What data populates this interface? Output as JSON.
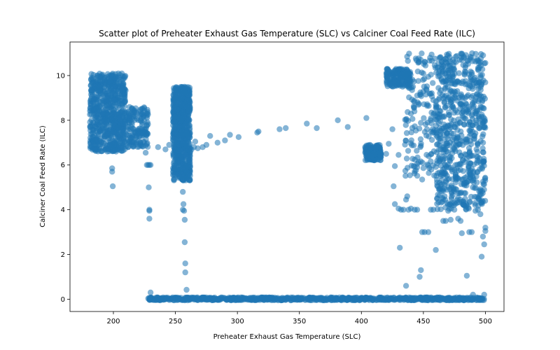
{
  "chart_data": {
    "type": "scatter",
    "title": "Scatter plot of Preheater Exhaust Gas Temperature (SLC) vs Calciner Coal Feed Rate (ILC)",
    "xlabel": "Preheater Exhaust Gas Temperature (SLC)",
    "ylabel": "Calciner Coal Feed Rate (ILC)",
    "xlim": [
      165,
      515
    ],
    "ylim": [
      -0.55,
      11.5
    ],
    "xticks": [
      200,
      250,
      300,
      350,
      400,
      450,
      500
    ],
    "yticks": [
      0,
      2,
      4,
      6,
      8,
      10
    ],
    "grid": false,
    "marker_color": "#1f77b4",
    "marker_alpha": 0.55,
    "clusters": [
      {
        "x_range": [
          181,
          210
        ],
        "y_range": [
          6.6,
          10.1
        ],
        "density": "dense"
      },
      {
        "x_range": [
          210,
          228
        ],
        "y_range": [
          6.8,
          8.6
        ],
        "density": "medium"
      },
      {
        "x_range": [
          248,
          262
        ],
        "y_range": [
          5.3,
          9.5
        ],
        "density": "dense"
      },
      {
        "x_range": [
          460,
          500
        ],
        "y_range": [
          4.0,
          11.0
        ],
        "density": "dense"
      },
      {
        "x_range": [
          435,
          460
        ],
        "y_range": [
          5.5,
          11.0
        ],
        "density": "medium"
      },
      {
        "x_range": [
          420,
          440
        ],
        "y_range": [
          9.5,
          10.3
        ],
        "density": "medium"
      },
      {
        "x_range": [
          228,
          500
        ],
        "y_range": [
          -0.05,
          0.08
        ],
        "density": "dense-line"
      },
      {
        "x_range": [
          403,
          416
        ],
        "y_range": [
          6.2,
          6.9
        ],
        "density": "medium"
      }
    ],
    "points": [
      [
        199.5,
        5.05
      ],
      [
        199,
        5.7
      ],
      [
        199,
        5.85
      ],
      [
        226,
        6.55
      ],
      [
        227,
        6.0
      ],
      [
        228,
        6.0
      ],
      [
        229,
        6.0
      ],
      [
        230,
        6.0
      ],
      [
        228.5,
        5.0
      ],
      [
        229,
        4.0
      ],
      [
        229,
        3.95
      ],
      [
        229,
        3.6
      ],
      [
        230,
        0.3
      ],
      [
        236,
        6.8
      ],
      [
        242,
        6.7
      ],
      [
        245,
        6.9
      ],
      [
        256,
        4.8
      ],
      [
        256.5,
        4.25
      ],
      [
        256,
        4.0
      ],
      [
        257,
        3.95
      ],
      [
        257.5,
        3.55
      ],
      [
        257.5,
        2.55
      ],
      [
        258,
        1.6
      ],
      [
        258,
        1.2
      ],
      [
        259,
        0.42
      ],
      [
        258,
        5.4
      ],
      [
        259,
        5.7
      ],
      [
        262,
        6.6
      ],
      [
        263,
        6.7
      ],
      [
        265,
        6.8
      ],
      [
        266,
        7.05
      ],
      [
        268,
        6.75
      ],
      [
        272,
        6.8
      ],
      [
        275,
        6.9
      ],
      [
        278,
        7.3
      ],
      [
        284,
        7.0
      ],
      [
        290,
        7.1
      ],
      [
        294,
        7.35
      ],
      [
        301,
        7.25
      ],
      [
        316,
        7.45
      ],
      [
        317,
        7.5
      ],
      [
        334,
        7.6
      ],
      [
        339,
        7.65
      ],
      [
        356,
        7.85
      ],
      [
        364,
        7.65
      ],
      [
        381,
        8.0
      ],
      [
        389,
        7.7
      ],
      [
        404,
        8.1
      ],
      [
        420,
        6.5
      ],
      [
        422,
        6.95
      ],
      [
        425,
        7.6
      ],
      [
        426,
        5.05
      ],
      [
        427,
        4.25
      ],
      [
        430,
        4.05
      ],
      [
        432,
        4.0
      ],
      [
        434,
        4.0
      ],
      [
        436,
        4.45
      ],
      [
        437,
        4.6
      ],
      [
        438,
        4.0
      ],
      [
        440,
        4.05
      ],
      [
        443,
        4.0
      ],
      [
        445,
        4.0
      ],
      [
        430,
        6.45
      ],
      [
        427,
        5.95
      ],
      [
        431,
        2.3
      ],
      [
        436,
        0.6
      ],
      [
        447,
        1.0
      ],
      [
        448,
        1.3
      ],
      [
        449,
        3.0
      ],
      [
        451,
        3.0
      ],
      [
        454,
        3.0
      ],
      [
        449,
        5.35
      ],
      [
        456,
        4.0
      ],
      [
        458,
        4.0
      ],
      [
        460,
        2.2
      ],
      [
        461,
        4.5
      ],
      [
        463,
        4.95
      ],
      [
        466,
        3.5
      ],
      [
        468,
        3.5
      ],
      [
        470,
        3.95
      ],
      [
        472,
        3.55
      ],
      [
        475,
        4.0
      ],
      [
        478,
        3.6
      ],
      [
        480,
        3.5
      ],
      [
        481,
        2.95
      ],
      [
        483,
        4.2
      ],
      [
        485,
        1.05
      ],
      [
        487,
        3.0
      ],
      [
        489,
        3.0
      ],
      [
        490,
        0.2
      ],
      [
        492,
        3.95
      ],
      [
        494,
        4.0
      ],
      [
        496,
        3.8
      ],
      [
        497,
        1.9
      ],
      [
        498,
        2.8
      ],
      [
        499,
        2.45
      ],
      [
        500,
        3.2
      ],
      [
        500,
        3.05
      ],
      [
        499,
        0.2
      ]
    ]
  }
}
